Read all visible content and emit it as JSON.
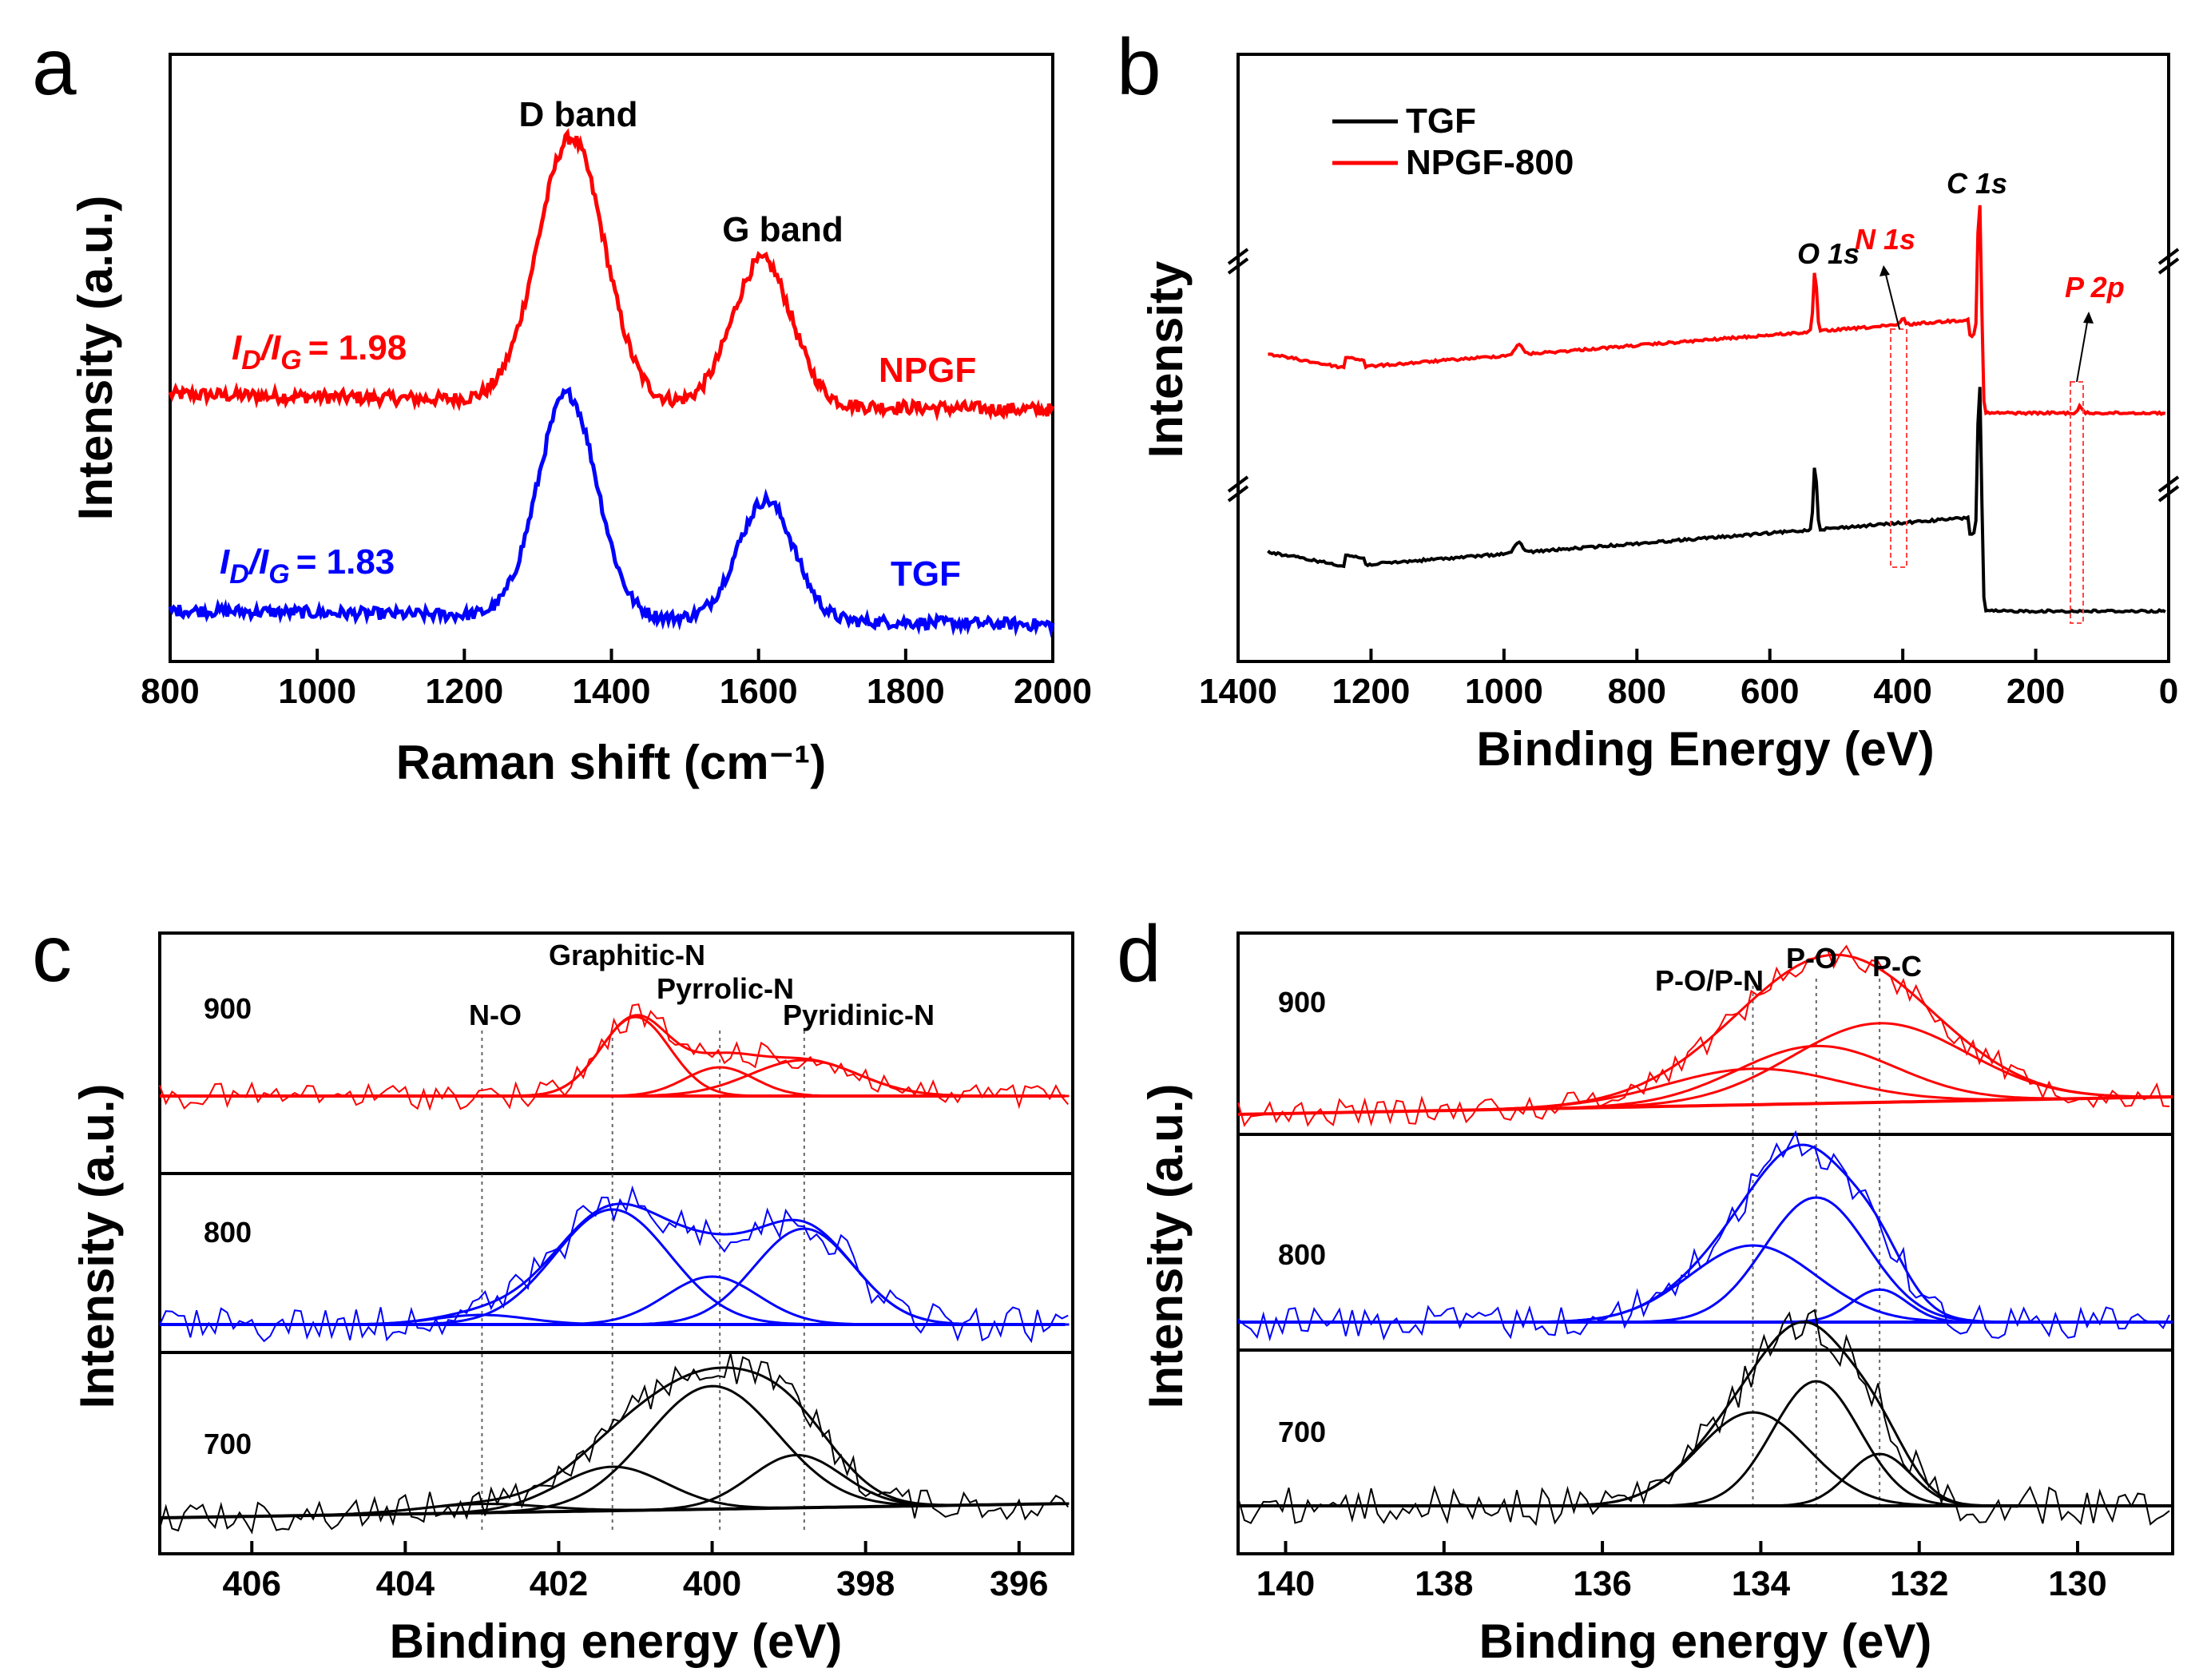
{
  "chart_data": [
    {
      "panel": "a",
      "type": "line",
      "xlabel": "Raman shift (cm⁻¹)",
      "ylabel": "Intensity (a.u.)",
      "xlim": [
        800,
        2000
      ],
      "xticks": [
        800,
        1000,
        1200,
        1400,
        1600,
        1800,
        2000
      ],
      "yticks_shown": false,
      "annotations": [
        "D band",
        "G band"
      ],
      "series": [
        {
          "name": "NPGF",
          "color": "#ff0000",
          "ratio_text": "= 1.98",
          "offset": 0.6,
          "peaks": [
            {
              "x": 1345,
              "h": 1.0,
              "w": 45
            },
            {
              "x": 1605,
              "h": 0.55,
              "w": 40
            }
          ]
        },
        {
          "name": "TGF",
          "color": "#0000ff",
          "ratio_text": "= 1.83",
          "offset": 0.0,
          "peaks": [
            {
              "x": 1340,
              "h": 0.93,
              "w": 40
            },
            {
              "x": 1610,
              "h": 0.5,
              "w": 38
            }
          ]
        }
      ],
      "ratio_label": {
        "main_d": "I",
        "sub_d": "D",
        "slash": "/",
        "main_g": "I",
        "sub_g": "G"
      }
    },
    {
      "panel": "b",
      "type": "line",
      "xlabel": "Binding Energy (eV)",
      "ylabel": "Intensity",
      "xlim": [
        1400,
        0
      ],
      "xticks": [
        1400,
        1200,
        1000,
        800,
        600,
        400,
        200,
        0
      ],
      "yticks_shown": false,
      "legend": [
        "TGF",
        "NPGF-800"
      ],
      "legend_position": "top-left",
      "series": [
        {
          "name": "TGF",
          "color": "#000000"
        },
        {
          "name": "NPGF-800",
          "color": "#ff0000"
        }
      ],
      "peak_labels": [
        {
          "text": "O 1s",
          "x": 532,
          "color": "#000000"
        },
        {
          "text": "N 1s",
          "x": 400,
          "color": "#ff0000"
        },
        {
          "text": "C 1s",
          "x": 284,
          "color": "#000000"
        },
        {
          "text": "P 2p",
          "x": 133,
          "color": "#ff0000"
        }
      ]
    },
    {
      "panel": "c",
      "type": "line",
      "xlabel": "Binding energy (eV)",
      "ylabel": "Intensity (a.u.)",
      "xlim": [
        407.2,
        395.3
      ],
      "xticks": [
        406,
        404,
        402,
        400,
        398,
        396
      ],
      "component_labels": [
        "N-O",
        "Graphitic-N",
        "Pyrrolic-N",
        "Pyridinic-N"
      ],
      "component_positions": [
        403.0,
        401.3,
        399.9,
        398.8
      ],
      "subpanels": [
        {
          "label": "900",
          "color": "#ff0000",
          "components": [
            {
              "x": 401.0,
              "h": 0.55,
              "w": 0.45
            },
            {
              "x": 399.9,
              "h": 0.2,
              "w": 0.45
            },
            {
              "x": 398.8,
              "h": 0.25,
              "w": 0.7
            }
          ]
        },
        {
          "label": "800",
          "color": "#0000ff",
          "components": [
            {
              "x": 403.0,
              "h": 0.05,
              "w": 0.6
            },
            {
              "x": 401.3,
              "h": 0.6,
              "w": 0.75
            },
            {
              "x": 400.0,
              "h": 0.25,
              "w": 0.6
            },
            {
              "x": 398.8,
              "h": 0.5,
              "w": 0.65
            }
          ]
        },
        {
          "label": "700",
          "color": "#000000",
          "components": [
            {
              "x": 403.0,
              "h": 0.05,
              "w": 0.8
            },
            {
              "x": 401.3,
              "h": 0.25,
              "w": 0.7
            },
            {
              "x": 400.0,
              "h": 0.7,
              "w": 0.85
            },
            {
              "x": 398.9,
              "h": 0.3,
              "w": 0.6
            }
          ]
        }
      ]
    },
    {
      "panel": "d",
      "type": "line",
      "xlabel": "Binding energy (eV)",
      "ylabel": "Intensity (a.u.)",
      "xlim": [
        140.6,
        128.8
      ],
      "xticks": [
        140,
        138,
        136,
        134,
        132,
        130
      ],
      "component_labels": [
        "P-O/P-N",
        "P-O",
        "P-C"
      ],
      "component_positions": [
        134.1,
        133.3,
        132.5
      ],
      "subpanels": [
        {
          "label": "900",
          "color": "#ff0000",
          "components": [
            {
              "x": 134.1,
              "h": 0.25,
              "w": 1.1
            },
            {
              "x": 133.3,
              "h": 0.4,
              "w": 1.0
            },
            {
              "x": 132.5,
              "h": 0.55,
              "w": 1.1
            }
          ]
        },
        {
          "label": "800",
          "color": "#0000ff",
          "components": [
            {
              "x": 134.1,
              "h": 0.4,
              "w": 0.8
            },
            {
              "x": 133.3,
              "h": 0.65,
              "w": 0.65
            },
            {
              "x": 132.5,
              "h": 0.17,
              "w": 0.35
            }
          ]
        },
        {
          "label": "700",
          "color": "#000000",
          "components": [
            {
              "x": 134.1,
              "h": 0.45,
              "w": 0.7
            },
            {
              "x": 133.3,
              "h": 0.6,
              "w": 0.55
            },
            {
              "x": 132.5,
              "h": 0.25,
              "w": 0.4
            }
          ]
        }
      ]
    }
  ],
  "panel_letters": [
    "a",
    "b",
    "c",
    "d"
  ],
  "colors": {
    "red": "#ff0000",
    "blue": "#0000ff",
    "black": "#000000"
  }
}
